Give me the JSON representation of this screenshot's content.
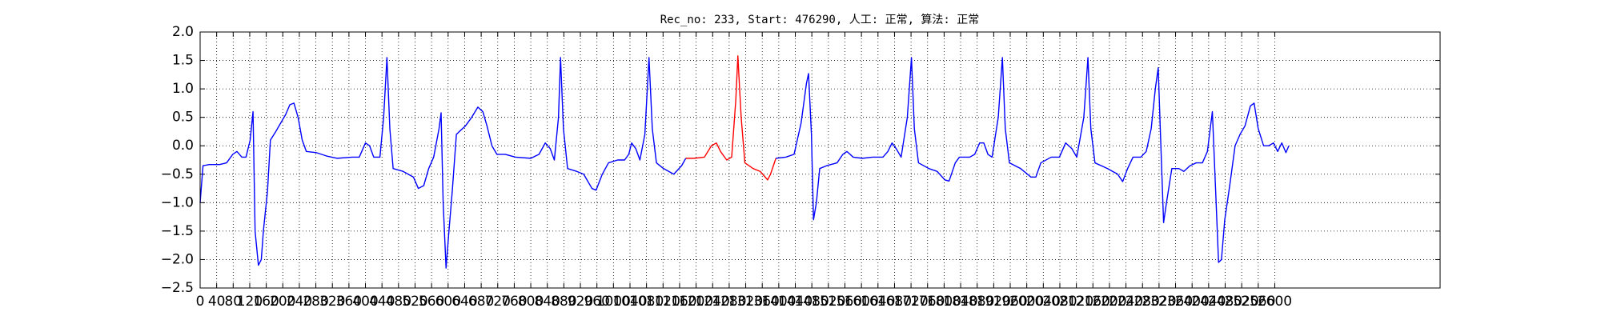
{
  "chart_data": {
    "type": "line",
    "title": "Rec_no: 233, Start: 476290, 人工: 正常, 算法: 正常",
    "xlim": [
      0,
      3000
    ],
    "xticks": [
      0,
      40,
      80,
      120,
      160,
      200,
      240,
      280,
      320,
      360,
      400,
      440,
      480,
      520,
      560,
      600,
      640,
      680,
      720,
      760,
      800,
      840,
      880,
      920,
      960,
      1000,
      1040,
      1080,
      1120,
      1160,
      1200,
      1240,
      1280,
      1320,
      1360,
      1400,
      1440,
      1480,
      1520,
      1560,
      1600,
      1640,
      1680,
      1720,
      1760,
      1800,
      1840,
      1880,
      1920,
      1960,
      2000,
      2040,
      2080,
      2120,
      2160,
      2200,
      2240,
      2280,
      2320,
      2360,
      2400,
      2440,
      2480,
      2520,
      2560,
      2600
    ],
    "ylim": [
      -2.5,
      2.0
    ],
    "yticks": [
      {
        "value": -2.5,
        "label": "−2.5"
      },
      {
        "value": -2.0,
        "label": "−2.0"
      },
      {
        "value": -1.5,
        "label": "−1.5"
      },
      {
        "value": -1.0,
        "label": "−1.0"
      },
      {
        "value": -0.5,
        "label": "−0.5"
      },
      {
        "value": 0.0,
        "label": "0.0"
      },
      0.5,
      {
        "value": 1.0,
        "label": "1.0"
      },
      1.5,
      {
        "value": 2.0,
        "label": "2.0"
      }
    ],
    "grid": true,
    "series": [
      {
        "color": "#0000ff",
        "x": [
          0,
          7,
          22,
          47,
          64,
          79,
          89,
          101,
          111,
          121,
          128,
          133,
          141,
          148,
          153,
          163,
          170,
          183,
          195,
          207,
          217,
          227,
          237,
          247,
          257,
          281,
          306,
          331,
          368,
          385,
          400,
          410,
          420,
          435,
          444,
          452,
          459,
          467,
          491,
          516,
          528,
          541,
          553,
          565,
          578,
          583,
          588,
          595,
          602,
          610,
          620,
          627,
          642,
          657,
          672,
          684,
          694,
          706,
          718,
          738,
          763,
          800,
          820,
          835,
          847,
          857,
          867,
          872,
          879,
          889,
          911,
          928,
          948,
          958,
          973,
          988,
          1010,
          1027,
          1037,
          1044,
          1054,
          1064,
          1076,
          1086,
          1094,
          1104,
          1121,
          1146,
          1165,
          1175
        ],
        "values": [
          -1.0,
          -0.35,
          -0.33,
          -0.33,
          -0.3,
          -0.15,
          -0.1,
          -0.2,
          -0.2,
          0.1,
          0.6,
          -1.5,
          -2.1,
          -2.0,
          -1.5,
          -0.8,
          0.1,
          0.25,
          0.4,
          0.55,
          0.72,
          0.75,
          0.5,
          0.1,
          -0.1,
          -0.12,
          -0.18,
          -0.22,
          -0.2,
          -0.2,
          0.05,
          0.0,
          -0.2,
          -0.2,
          0.5,
          1.55,
          0.3,
          -0.4,
          -0.45,
          -0.55,
          -0.75,
          -0.7,
          -0.4,
          -0.2,
          0.3,
          0.58,
          -1.0,
          -2.15,
          -1.5,
          -0.8,
          0.2,
          0.25,
          0.35,
          0.5,
          0.68,
          0.6,
          0.35,
          0.0,
          -0.15,
          -0.15,
          -0.2,
          -0.22,
          -0.15,
          0.05,
          -0.05,
          -0.25,
          0.5,
          1.55,
          0.3,
          -0.4,
          -0.45,
          -0.5,
          -0.75,
          -0.78,
          -0.5,
          -0.3,
          -0.25,
          -0.25,
          -0.15,
          0.05,
          -0.05,
          -0.25,
          0.2,
          1.55,
          0.3,
          -0.3,
          -0.4,
          -0.5,
          -0.35,
          -0.22
        ]
      },
      {
        "color": "#ff0000",
        "x": [
          1175,
          1195,
          1220,
          1237,
          1249,
          1259,
          1274,
          1286,
          1296,
          1301,
          1309,
          1318,
          1338,
          1355,
          1373,
          1380,
          1393
        ],
        "values": [
          -0.22,
          -0.22,
          -0.2,
          0.0,
          0.05,
          -0.1,
          -0.25,
          -0.2,
          0.8,
          1.58,
          0.5,
          -0.3,
          -0.4,
          -0.45,
          -0.6,
          -0.5,
          -0.22
        ]
      },
      {
        "color": "#0000ff",
        "x": [
          1393,
          1417,
          1437,
          1454,
          1467,
          1472,
          1479,
          1484,
          1491,
          1499,
          1516,
          1541,
          1555,
          1565,
          1580,
          1602,
          1627,
          1652,
          1664,
          1674,
          1684,
          1696,
          1711,
          1721,
          1728,
          1738,
          1763,
          1783,
          1802,
          1812,
          1827,
          1837,
          1862,
          1874,
          1886,
          1896,
          1906,
          1916,
          1931,
          1941,
          1948,
          1958,
          1985,
          2010,
          2022,
          2034,
          2059,
          2079,
          2094,
          2109,
          2121,
          2138,
          2148,
          2155,
          2165,
          2195,
          2220,
          2232,
          2244,
          2257,
          2276,
          2289,
          2301,
          2311,
          2318,
          2323,
          2331,
          2338,
          2351,
          2368,
          2380,
          2395,
          2410,
          2425,
          2437,
          2449,
          2457,
          2464,
          2471,
          2479,
          2491,
          2504,
          2516,
          2528,
          2541,
          2550,
          2560,
          2573,
          2585,
          2597,
          2607,
          2617,
          2627,
          2634
        ],
        "values": [
          -0.22,
          -0.2,
          -0.15,
          0.4,
          1.1,
          1.27,
          0.2,
          -1.3,
          -1.0,
          -0.4,
          -0.35,
          -0.3,
          -0.15,
          -0.1,
          -0.2,
          -0.22,
          -0.2,
          -0.2,
          -0.1,
          0.05,
          -0.05,
          -0.2,
          0.5,
          1.55,
          0.3,
          -0.3,
          -0.4,
          -0.45,
          -0.6,
          -0.62,
          -0.3,
          -0.2,
          -0.2,
          -0.15,
          0.05,
          0.05,
          -0.15,
          -0.2,
          0.5,
          1.55,
          0.3,
          -0.3,
          -0.4,
          -0.55,
          -0.55,
          -0.3,
          -0.2,
          -0.2,
          0.05,
          -0.05,
          -0.2,
          0.5,
          1.55,
          0.3,
          -0.3,
          -0.4,
          -0.5,
          -0.63,
          -0.4,
          -0.2,
          -0.2,
          -0.1,
          0.3,
          1.0,
          1.37,
          0.3,
          -1.35,
          -1.0,
          -0.4,
          -0.4,
          -0.45,
          -0.35,
          -0.3,
          -0.3,
          -0.1,
          0.6,
          -0.8,
          -2.05,
          -2.0,
          -1.3,
          -0.7,
          0.0,
          0.2,
          0.35,
          0.7,
          0.75,
          0.3,
          0.0,
          0.0,
          0.05,
          -0.1,
          0.05,
          -0.12,
          0.0
        ]
      }
    ]
  }
}
